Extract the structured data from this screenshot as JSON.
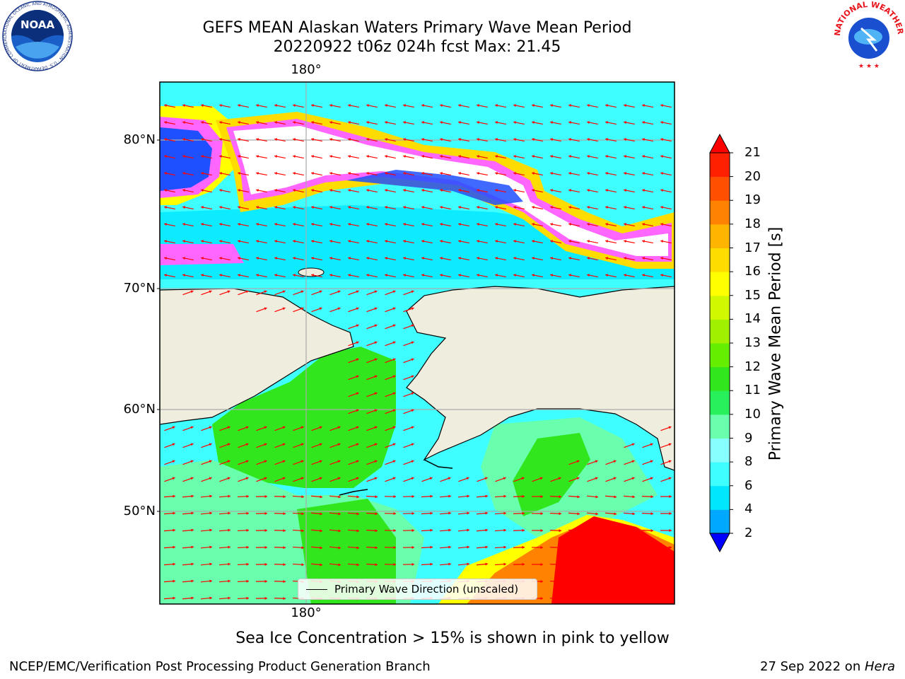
{
  "title": {
    "line1": "GEFS MEAN Alaskan Waters Primary Wave Mean Period",
    "line2": "20220922 t06z 024h fcst   Max: 21.45"
  },
  "map": {
    "lat_ticks": [
      "80°N",
      "70°N",
      "60°N",
      "50°N"
    ],
    "lon_tick_top": "180°",
    "lon_tick_bottom": "180°",
    "legend_label": "Primary Wave Direction (unscaled)",
    "colors": {
      "land": "#efedde",
      "ocean_base": "#3ffeff",
      "arrow": "#ff0000",
      "grid": "#aaaaaa"
    }
  },
  "colorbar": {
    "label": "Primary Wave Mean Period [s]",
    "ticks": [
      "2",
      "4",
      "6",
      "8",
      "9",
      "10",
      "11",
      "12",
      "13",
      "14",
      "15",
      "16",
      "17",
      "18",
      "19",
      "20",
      "21"
    ],
    "colors": [
      "#0028ff",
      "#00a8ff",
      "#00e6ff",
      "#3ffeff",
      "#87ffff",
      "#69ffad",
      "#28f05a",
      "#32e61e",
      "#66ee00",
      "#a0f000",
      "#d2f800",
      "#ffff00",
      "#ffdc00",
      "#ffb400",
      "#ff8200",
      "#ff5000",
      "#ff2000"
    ],
    "under_color": "#0000ff",
    "over_color": "#ff0000"
  },
  "caption": "Sea Ice Concentration > 15% is shown in pink to yellow",
  "footer": {
    "left": "NCEP/EMC/Verification Post Processing Product Generation Branch",
    "right_date": "27 Sep 2022 on ",
    "right_host": "Hera"
  },
  "logos": {
    "noaa_text": "NOAA",
    "noaa_ring_text": "NATIONAL OCEANIC AND ATMOSPHERIC ADMINISTRATION · U.S. DEPARTMENT OF COMMERCE",
    "nws_ring_text": "NATIONAL WEATHER SERVICE"
  }
}
